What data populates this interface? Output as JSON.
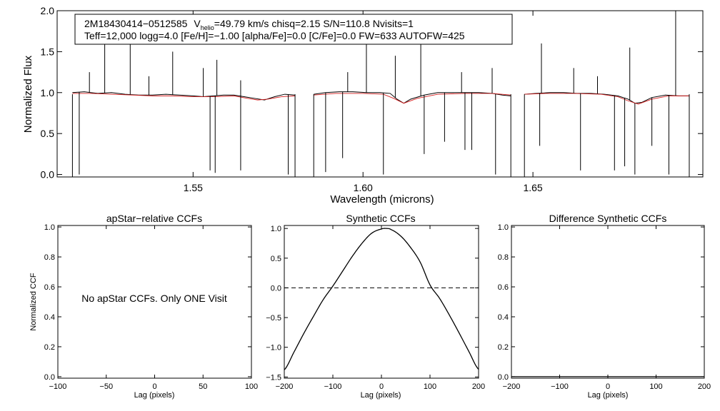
{
  "info_box": {
    "line1_star": "2M18430414−0512585",
    "line1_v": "V",
    "line1_v_sub": "helio",
    "line1_rest": "=49.79 km/s  chisq=2.15  S/N=110.8  Nvisits=1",
    "line2": "Teff=12,000 logg=4.0 [Fe/H]=−1.00 [alpha/Fe]=0.0 [C/Fe]=0.0 FW=633 AUTOFW=425"
  },
  "no_ccf_message": "No apStar CCFs.  Only ONE Visit",
  "colors": {
    "observed": "#000000",
    "model": "#d62020",
    "axis": "#000000"
  },
  "chart_data": [
    {
      "id": "spectrum",
      "type": "line",
      "title": "",
      "xlabel": "Wavelength (microns)",
      "ylabel": "Normalized Flux",
      "xlim": [
        1.51,
        1.7
      ],
      "ylim": [
        -0.03,
        2.0
      ],
      "xticks": [
        1.55,
        1.6,
        1.65
      ],
      "xtick_labels": [
        "1.55",
        "1.60",
        "1.65"
      ],
      "yticks": [
        0.0,
        0.5,
        1.0,
        1.5,
        2.0
      ],
      "ytick_labels": [
        "0.0",
        "0.5",
        "1.0",
        "1.5",
        "2.0"
      ],
      "detector_segments": [
        [
          1.5145,
          1.58
        ],
        [
          1.5855,
          1.6435
        ],
        [
          1.6475,
          1.696
        ]
      ],
      "series": [
        {
          "name": "observed",
          "x": [
            1.5145,
            1.518,
            1.522,
            1.526,
            1.53,
            1.534,
            1.538,
            1.542,
            1.546,
            1.55,
            1.553,
            1.556,
            1.559,
            1.562,
            1.565,
            1.568,
            1.571,
            1.574,
            1.577,
            1.58,
            1.5855,
            1.589,
            1.593,
            1.597,
            1.601,
            1.605,
            1.608,
            1.61,
            1.612,
            1.614,
            1.618,
            1.622,
            1.626,
            1.63,
            1.634,
            1.638,
            1.641,
            1.6435,
            1.6475,
            1.651,
            1.655,
            1.659,
            1.663,
            1.667,
            1.671,
            1.675,
            1.678,
            1.68,
            1.682,
            1.685,
            1.689,
            1.693,
            1.696
          ],
          "y": [
            1.0,
            1.01,
            0.99,
            1.0,
            0.98,
            0.97,
            0.97,
            0.98,
            0.97,
            0.96,
            0.95,
            0.96,
            0.97,
            0.97,
            0.95,
            0.93,
            0.91,
            0.95,
            0.98,
            0.97,
            0.98,
            1.0,
            1.01,
            1.01,
            1.0,
            1.0,
            0.99,
            0.92,
            0.87,
            0.92,
            0.97,
            1.0,
            1.0,
            1.0,
            1.0,
            0.99,
            0.97,
            0.96,
            0.98,
            0.99,
            1.0,
            1.0,
            0.99,
            0.99,
            0.98,
            0.96,
            0.92,
            0.87,
            0.88,
            0.94,
            0.97,
            0.96,
            0.96
          ]
        },
        {
          "name": "model",
          "x": [
            1.5145,
            1.52,
            1.526,
            1.532,
            1.538,
            1.544,
            1.55,
            1.556,
            1.562,
            1.566,
            1.569,
            1.572,
            1.576,
            1.58,
            1.5855,
            1.592,
            1.6,
            1.606,
            1.609,
            1.612,
            1.616,
            1.622,
            1.63,
            1.638,
            1.6435,
            1.6475,
            1.654,
            1.662,
            1.67,
            1.675,
            1.678,
            1.681,
            1.685,
            1.69,
            1.696
          ],
          "y": [
            0.99,
            0.99,
            0.98,
            0.97,
            0.96,
            0.96,
            0.95,
            0.95,
            0.96,
            0.93,
            0.91,
            0.92,
            0.95,
            0.96,
            0.97,
            0.99,
            0.99,
            0.98,
            0.93,
            0.87,
            0.93,
            0.98,
            0.99,
            0.99,
            0.97,
            0.98,
            0.99,
            0.99,
            0.98,
            0.95,
            0.9,
            0.86,
            0.92,
            0.96,
            0.96
          ]
        }
      ],
      "emission_spikes": [
        {
          "x": 1.5195,
          "y": 1.25
        },
        {
          "x": 1.524,
          "y": 1.65
        },
        {
          "x": 1.5315,
          "y": 1.6
        },
        {
          "x": 1.537,
          "y": 1.2
        },
        {
          "x": 1.544,
          "y": 1.5
        },
        {
          "x": 1.553,
          "y": 1.3
        },
        {
          "x": 1.557,
          "y": 1.4
        },
        {
          "x": 1.564,
          "y": 1.15
        },
        {
          "x": 1.5955,
          "y": 1.25
        },
        {
          "x": 1.601,
          "y": 1.75
        },
        {
          "x": 1.6095,
          "y": 1.45
        },
        {
          "x": 1.617,
          "y": 1.6
        },
        {
          "x": 1.629,
          "y": 1.25
        },
        {
          "x": 1.638,
          "y": 1.3
        },
        {
          "x": 1.6525,
          "y": 1.6
        },
        {
          "x": 1.662,
          "y": 1.3
        },
        {
          "x": 1.669,
          "y": 1.2
        },
        {
          "x": 1.6785,
          "y": 1.55
        },
        {
          "x": 1.692,
          "y": 2.0
        }
      ],
      "absorption_spikes": [
        {
          "x": 1.5165,
          "y": 0.0
        },
        {
          "x": 1.555,
          "y": 0.05
        },
        {
          "x": 1.5565,
          "y": 0.02
        },
        {
          "x": 1.564,
          "y": 0.05
        },
        {
          "x": 1.578,
          "y": 0.0
        },
        {
          "x": 1.589,
          "y": 0.03
        },
        {
          "x": 1.594,
          "y": 0.2
        },
        {
          "x": 1.606,
          "y": 0.0
        },
        {
          "x": 1.618,
          "y": 0.25
        },
        {
          "x": 1.624,
          "y": 0.4
        },
        {
          "x": 1.63,
          "y": 0.3
        },
        {
          "x": 1.632,
          "y": 0.3
        },
        {
          "x": 1.639,
          "y": 0.0
        },
        {
          "x": 1.652,
          "y": 0.35
        },
        {
          "x": 1.664,
          "y": 0.05
        },
        {
          "x": 1.674,
          "y": 0.05
        },
        {
          "x": 1.677,
          "y": 0.1
        },
        {
          "x": 1.68,
          "y": 0.0
        },
        {
          "x": 1.685,
          "y": 0.35
        },
        {
          "x": 1.69,
          "y": 0.0
        }
      ]
    },
    {
      "id": "apstar_ccf",
      "type": "line",
      "title": "apStar−relative CCFs",
      "xlabel": "Lag (pixels)",
      "ylabel": "Normalized CCF",
      "xlim": [
        -100,
        100
      ],
      "ylim": [
        -0.01,
        1.01
      ],
      "xticks": [
        -100,
        -50,
        0,
        50,
        100
      ],
      "xtick_labels": [
        "−100",
        "−50",
        "0",
        "50",
        "100"
      ],
      "yticks": [
        0.0,
        0.2,
        0.4,
        0.6,
        0.8,
        1.0
      ],
      "ytick_labels": [
        "0.0",
        "0.2",
        "0.4",
        "0.6",
        "0.8",
        "1.0"
      ],
      "series": []
    },
    {
      "id": "synthetic_ccf",
      "type": "line",
      "title": "Synthetic CCFs",
      "xlabel": "Lag (pixels)",
      "ylabel": "",
      "xlim": [
        -200,
        200
      ],
      "ylim": [
        -1.52,
        1.05
      ],
      "xticks": [
        -200,
        -100,
        0,
        100,
        200
      ],
      "xtick_labels": [
        "−200",
        "−100",
        "0",
        "100",
        "200"
      ],
      "yticks": [
        -1.5,
        -1.0,
        -0.5,
        0.0,
        0.5,
        1.0
      ],
      "ytick_labels": [
        "−1.5",
        "−1.0",
        "−0.5",
        "0.0",
        "0.5",
        "1.0"
      ],
      "reference_line": {
        "y": 0.0,
        "style": "dashed"
      },
      "series": [
        {
          "name": "ccf",
          "x": [
            -200,
            -180,
            -160,
            -140,
            -120,
            -100,
            -80,
            -60,
            -40,
            -20,
            0,
            10,
            20,
            40,
            60,
            80,
            100,
            120,
            140,
            160,
            180,
            200
          ],
          "y": [
            -1.38,
            -1.08,
            -0.77,
            -0.48,
            -0.2,
            0.03,
            0.28,
            0.53,
            0.75,
            0.92,
            0.99,
            1.0,
            0.98,
            0.87,
            0.68,
            0.43,
            0.05,
            -0.18,
            -0.46,
            -0.76,
            -1.07,
            -1.37
          ]
        }
      ]
    },
    {
      "id": "difference_ccf",
      "type": "line",
      "title": "Difference Synthetic CCFs",
      "xlabel": "Lag (pixels)",
      "ylabel": "",
      "xlim": [
        -200,
        200
      ],
      "ylim": [
        -0.01,
        1.01
      ],
      "xticks": [
        -200,
        -100,
        0,
        100,
        200
      ],
      "xtick_labels": [
        "−200",
        "−100",
        "0",
        "100",
        "200"
      ],
      "yticks": [
        0.0,
        0.2,
        0.4,
        0.6,
        0.8,
        1.0
      ],
      "ytick_labels": [
        "0.0",
        "0.2",
        "0.4",
        "0.6",
        "0.8",
        "1.0"
      ],
      "series": [
        {
          "name": "difference",
          "x": [
            -200,
            200
          ],
          "y": [
            0.0,
            0.0
          ]
        }
      ]
    }
  ]
}
